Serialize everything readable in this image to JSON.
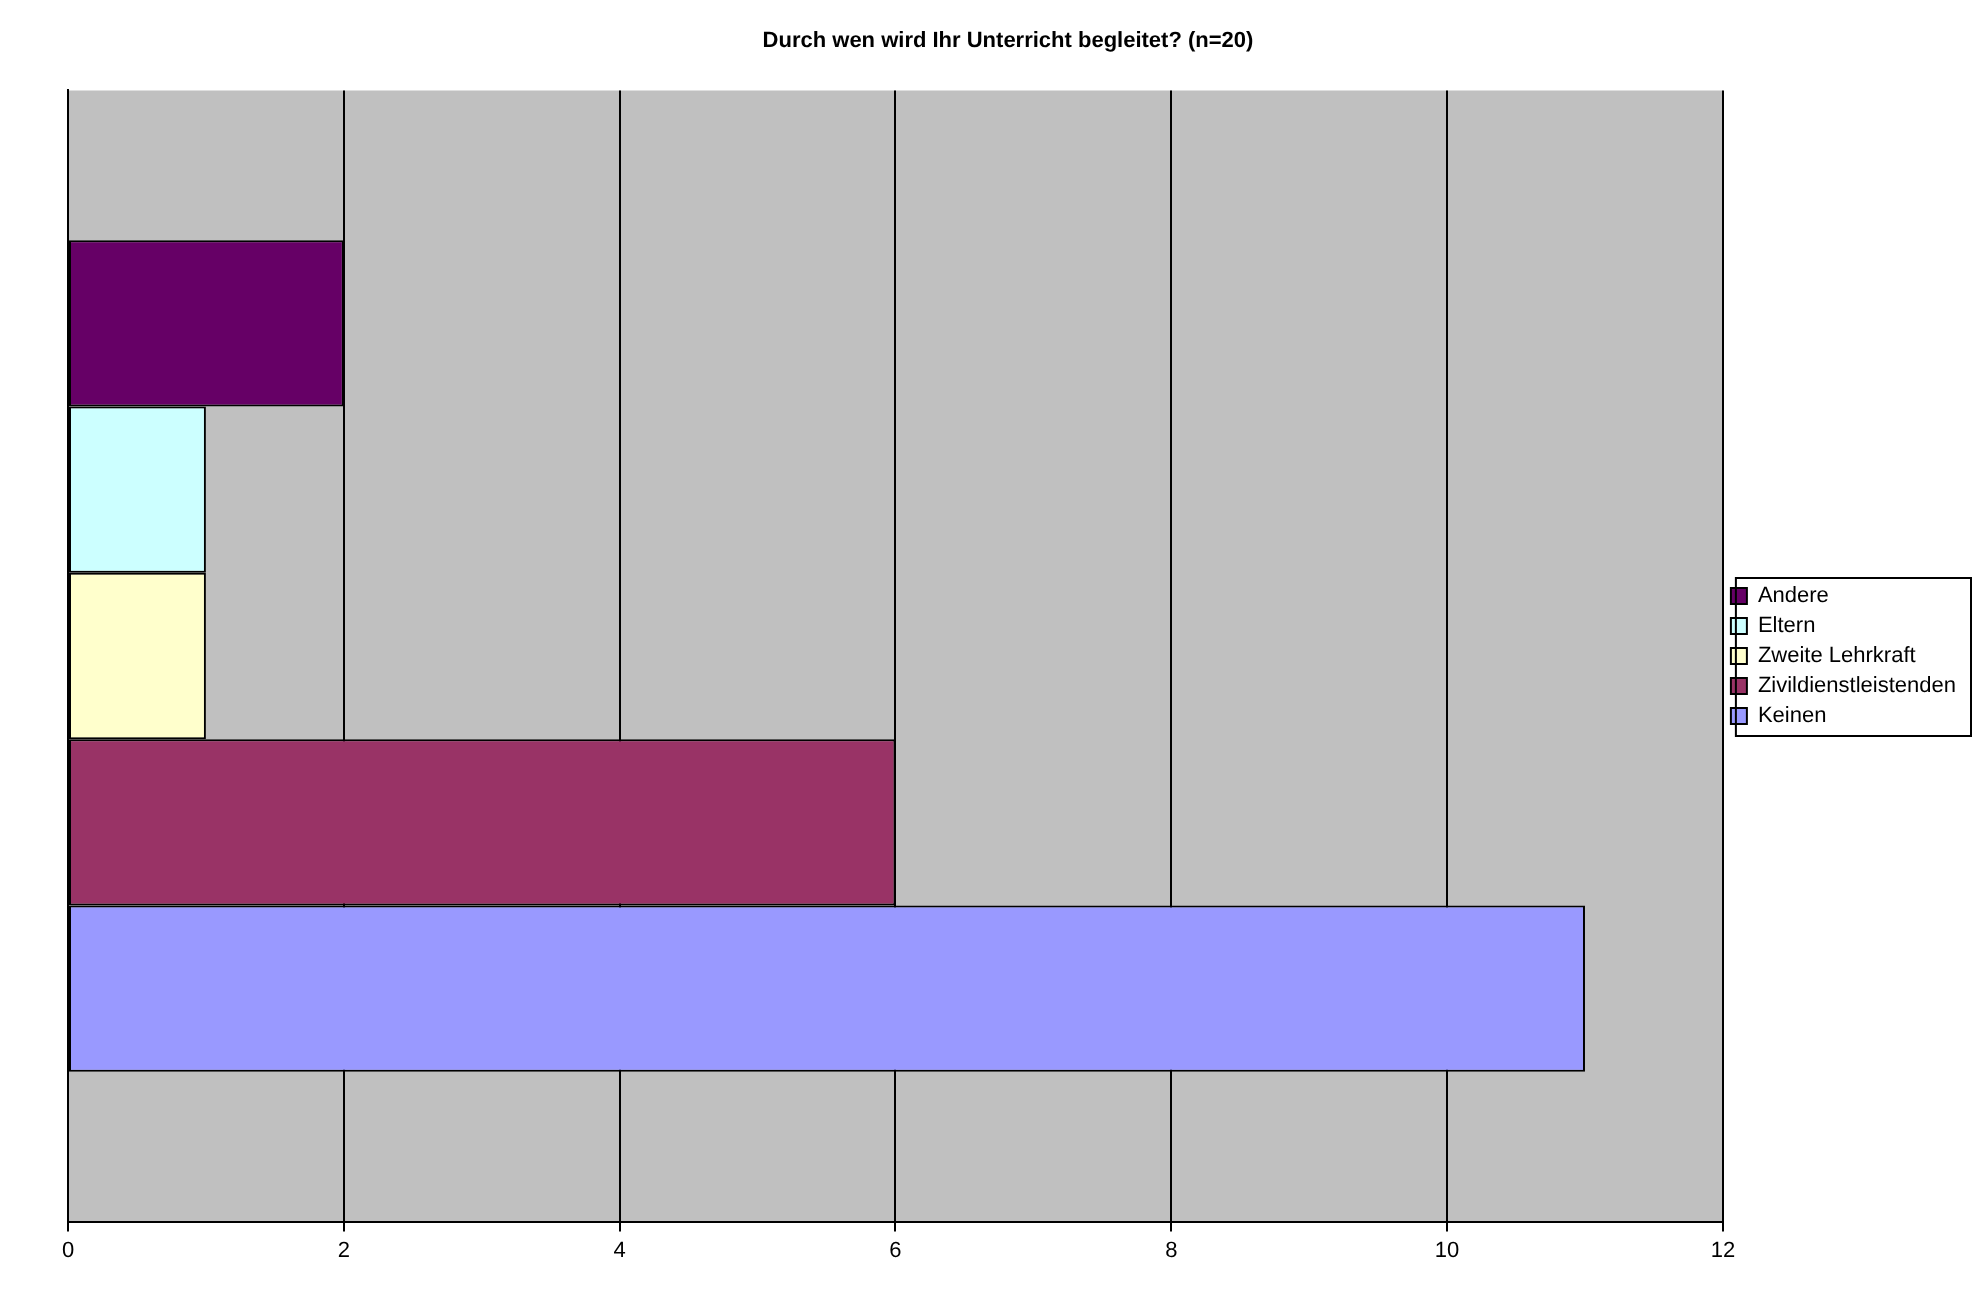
{
  "chart_data": {
    "type": "bar",
    "orientation": "horizontal",
    "title": "Durch wen wird Ihr Unterricht begleitet? (n=20)",
    "categories": [
      null
    ],
    "series": [
      {
        "name": "Andere",
        "color": "#660066",
        "values": [
          2
        ]
      },
      {
        "name": "Eltern",
        "color": "#ccffff",
        "values": [
          1
        ]
      },
      {
        "name": "Zweite Lehrkraft",
        "color": "#ffffcc",
        "values": [
          1
        ]
      },
      {
        "name": "Zivildienstleistenden",
        "color": "#993366",
        "values": [
          6
        ]
      },
      {
        "name": "Keinen",
        "color": "#9999ff",
        "values": [
          11
        ]
      }
    ],
    "xlim": [
      0,
      12
    ],
    "xticks": [
      0,
      2,
      4,
      6,
      8,
      10,
      12
    ],
    "grid": "x",
    "legend": "right"
  }
}
